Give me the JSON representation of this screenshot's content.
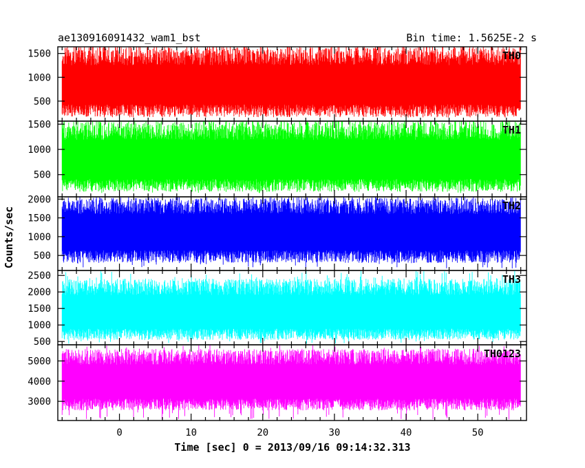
{
  "header": {
    "title": "ae130916091432_wam1_bst",
    "bin_time": "Bin time: 1.5625E-2 s"
  },
  "chart_data": {
    "type": "line",
    "title": "ae130916091432_wam1_bst",
    "subtitle": "Bin time: 1.5625E-2 s",
    "xlabel": "Time [sec] 0 = 2013/09/16 09:14:32.313",
    "ylabel": "Counts/sec",
    "xlim": [
      -8.6,
      56.8
    ],
    "x_range_data": [
      -8.0,
      56.0
    ],
    "x_ticks": [
      0,
      10,
      20,
      30,
      40,
      50
    ],
    "grid": false,
    "panels": [
      {
        "name": "TH0",
        "color": "#ff0000",
        "ylim": [
          80,
          1640
        ],
        "y_ticks": [
          500,
          1000,
          1500
        ],
        "band": {
          "mean": 760,
          "spread_low": 600,
          "spread_high": 900,
          "min": 150,
          "max": 1640
        }
      },
      {
        "name": "TH1",
        "color": "#00ff00",
        "ylim": [
          60,
          1560
        ],
        "y_ticks": [
          500,
          1000,
          1500
        ],
        "band": {
          "mean": 720,
          "spread_low": 560,
          "spread_high": 850,
          "min": 130,
          "max": 1560
        }
      },
      {
        "name": "TH2",
        "color": "#0000ff",
        "ylim": [
          100,
          2060
        ],
        "y_ticks": [
          500,
          1000,
          1500,
          2000
        ],
        "band": {
          "mean": 1050,
          "spread_low": 750,
          "spread_high": 1000,
          "min": 150,
          "max": 2060
        }
      },
      {
        "name": "TH3",
        "color": "#00ffff",
        "ylim": [
          400,
          2650
        ],
        "y_ticks": [
          500,
          1000,
          1500,
          2000,
          2500
        ],
        "band": {
          "mean": 1300,
          "spread_low": 750,
          "spread_high": 1100,
          "min": 430,
          "max": 2650
        }
      },
      {
        "name": "TH0123",
        "color": "#ff00ff",
        "ylim": [
          2050,
          5800
        ],
        "y_ticks": [
          3000,
          4000,
          5000
        ],
        "band": {
          "mean": 3850,
          "spread_low": 1300,
          "spread_high": 1750,
          "min": 2100,
          "max": 5800
        }
      }
    ]
  }
}
